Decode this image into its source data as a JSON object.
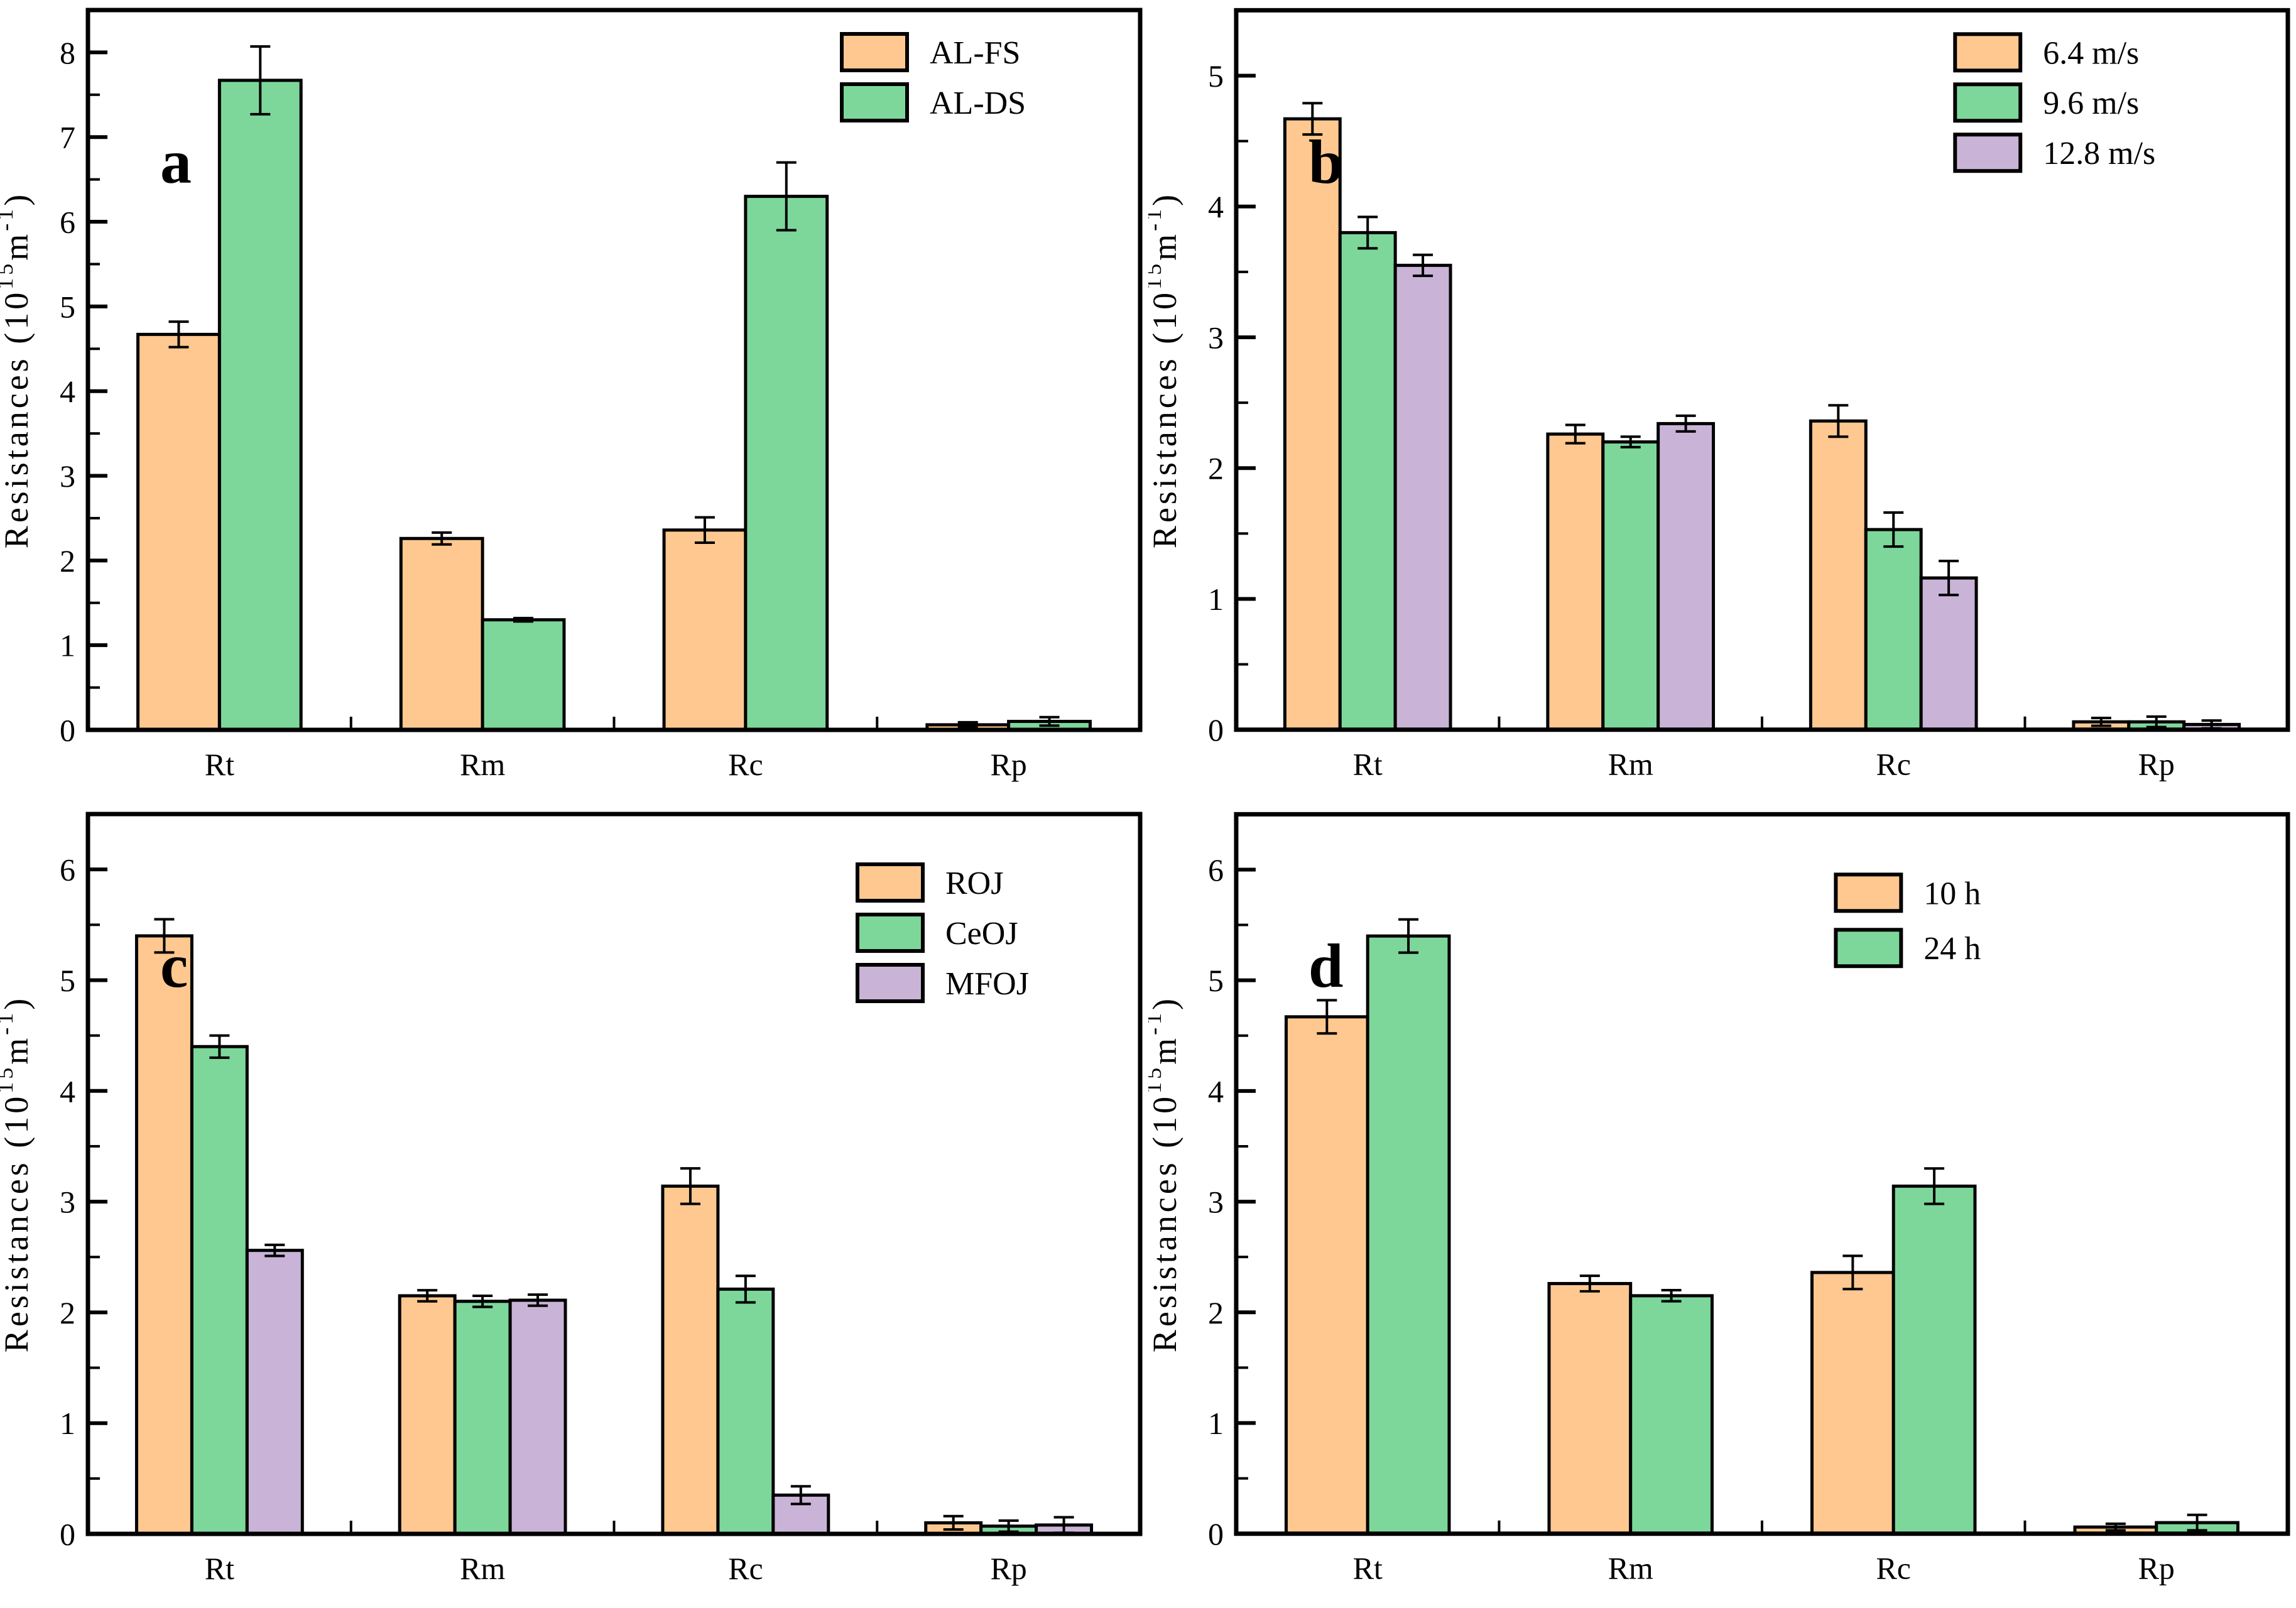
{
  "figure_title": "",
  "ylabel": "Resistances (10¹⁵m⁻¹)",
  "ylabel_parts": {
    "pre": "Resistances (10",
    "sup1": "15",
    "mid": "m",
    "sup2": "-1",
    "post": ")"
  },
  "categories": [
    "Rt",
    "Rm",
    "Rc",
    "Rp"
  ],
  "colors": {
    "orange": "#FFC890",
    "green": "#7DD79B",
    "purple": "#C9B4D7",
    "outline": "#000000"
  },
  "chart_data": [
    {
      "type": "bar",
      "panel_label": "a",
      "title": "",
      "xlabel": "",
      "ylabel": "Resistances (10^15 m^-1)",
      "categories": [
        "Rt",
        "Rm",
        "Rc",
        "Rp"
      ],
      "ylim": [
        0,
        8.5
      ],
      "yticks": [
        0,
        1,
        2,
        3,
        4,
        5,
        6,
        7,
        8
      ],
      "ytick_minor_step": 0.5,
      "grid": false,
      "legend_position": "top-right",
      "series": [
        {
          "name": "AL-FS",
          "color": "#FFC890",
          "values": [
            4.67,
            2.26,
            2.36,
            0.06
          ],
          "errors": [
            0.15,
            0.07,
            0.15,
            0.03
          ]
        },
        {
          "name": "AL-DS",
          "color": "#7DD79B",
          "values": [
            7.67,
            1.3,
            6.3,
            0.1
          ],
          "errors": [
            0.4,
            0.02,
            0.4,
            0.05
          ]
        }
      ]
    },
    {
      "type": "bar",
      "panel_label": "b",
      "title": "",
      "xlabel": "",
      "ylabel": "Resistances (10^15 m^-1)",
      "categories": [
        "Rt",
        "Rm",
        "Rc",
        "Rp"
      ],
      "ylim": [
        0,
        5.5
      ],
      "yticks": [
        0,
        1,
        2,
        3,
        4,
        5
      ],
      "ytick_minor_step": 0.5,
      "grid": false,
      "legend_position": "top-right",
      "series": [
        {
          "name": "6.4 m/s",
          "color": "#FFC890",
          "values": [
            4.67,
            2.26,
            2.36,
            0.06
          ],
          "errors": [
            0.12,
            0.07,
            0.12,
            0.03
          ]
        },
        {
          "name": "9.6 m/s",
          "color": "#7DD79B",
          "values": [
            3.8,
            2.2,
            1.53,
            0.06
          ],
          "errors": [
            0.12,
            0.04,
            0.13,
            0.04
          ]
        },
        {
          "name": "12.8 m/s",
          "color": "#C9B4D7",
          "values": [
            3.55,
            2.34,
            1.16,
            0.04
          ],
          "errors": [
            0.08,
            0.06,
            0.13,
            0.03
          ]
        }
      ]
    },
    {
      "type": "bar",
      "panel_label": "c",
      "title": "",
      "xlabel": "",
      "ylabel": "Resistances (10^15 m^-1)",
      "categories": [
        "Rt",
        "Rm",
        "Rc",
        "Rp"
      ],
      "ylim": [
        0,
        6.5
      ],
      "yticks": [
        0,
        1,
        2,
        3,
        4,
        5,
        6
      ],
      "ytick_minor_step": 0.5,
      "grid": false,
      "legend_position": "top-right",
      "series": [
        {
          "name": "ROJ",
          "color": "#FFC890",
          "values": [
            5.4,
            2.15,
            3.14,
            0.1
          ],
          "errors": [
            0.15,
            0.05,
            0.16,
            0.06
          ]
        },
        {
          "name": "CeOJ",
          "color": "#7DD79B",
          "values": [
            4.4,
            2.1,
            2.21,
            0.07
          ],
          "errors": [
            0.1,
            0.05,
            0.12,
            0.05
          ]
        },
        {
          "name": "MFOJ",
          "color": "#C9B4D7",
          "values": [
            2.56,
            2.11,
            0.35,
            0.08
          ],
          "errors": [
            0.05,
            0.05,
            0.08,
            0.07
          ]
        }
      ]
    },
    {
      "type": "bar",
      "panel_label": "d",
      "title": "",
      "xlabel": "",
      "ylabel": "Resistances (10^15 m^-1)",
      "categories": [
        "Rt",
        "Rm",
        "Rc",
        "Rp"
      ],
      "ylim": [
        0,
        6.5
      ],
      "yticks": [
        0,
        1,
        2,
        3,
        4,
        5,
        6
      ],
      "ytick_minor_step": 0.5,
      "grid": false,
      "legend_position": "top-right",
      "series": [
        {
          "name": "10 h",
          "color": "#FFC890",
          "values": [
            4.67,
            2.26,
            2.36,
            0.06
          ],
          "errors": [
            0.15,
            0.07,
            0.15,
            0.03
          ]
        },
        {
          "name": "24 h",
          "color": "#7DD79B",
          "values": [
            5.4,
            2.15,
            3.14,
            0.1
          ],
          "errors": [
            0.15,
            0.05,
            0.16,
            0.07
          ]
        }
      ]
    }
  ]
}
